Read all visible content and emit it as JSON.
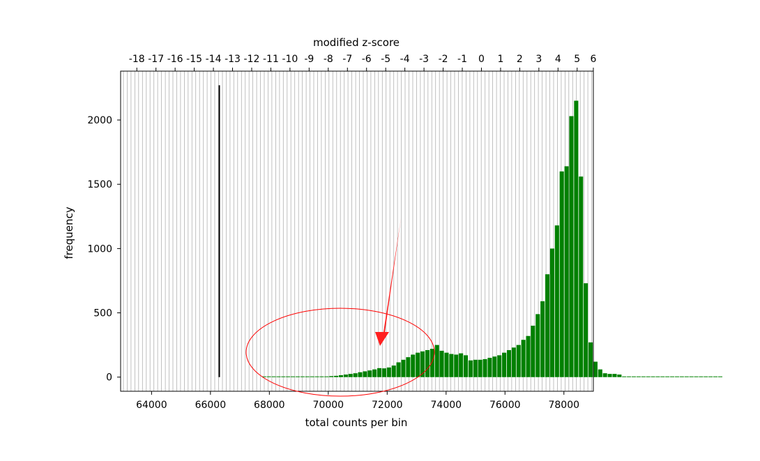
{
  "chart_data": {
    "type": "bar",
    "title": "",
    "xlabel": "total counts per bin",
    "ylabel": "frequency",
    "top_xlabel": "modified z-score",
    "xlim": [
      62950,
      79000
    ],
    "ylim": [
      -110,
      2380
    ],
    "x_ticks": [
      "64000",
      "66000",
      "68000",
      "70000",
      "72000",
      "74000",
      "76000",
      "78000"
    ],
    "y_ticks": [
      "0",
      "500",
      "1000",
      "1500",
      "2000"
    ],
    "top_ticks": [
      {
        "label": "-18",
        "x": 63500
      },
      {
        "label": "-17",
        "x": 64150
      },
      {
        "label": "-16",
        "x": 64800
      },
      {
        "label": "-15",
        "x": 65450
      },
      {
        "label": "-14",
        "x": 66100
      },
      {
        "label": "-13",
        "x": 66750
      },
      {
        "label": "-12",
        "x": 67400
      },
      {
        "label": "-11",
        "x": 68050
      },
      {
        "label": "-10",
        "x": 68700
      },
      {
        "label": "-9",
        "x": 69350
      },
      {
        "label": "-8",
        "x": 70000
      },
      {
        "label": "-7",
        "x": 70650
      },
      {
        "label": "-6",
        "x": 71300
      },
      {
        "label": "-5",
        "x": 71950
      },
      {
        "label": "-4",
        "x": 72600
      },
      {
        "label": "-3",
        "x": 73250
      },
      {
        "label": "-2",
        "x": 73900
      },
      {
        "label": "-1",
        "x": 74550
      },
      {
        "label": "0",
        "x": 75200
      },
      {
        "label": "1",
        "x": 75850
      },
      {
        "label": "2",
        "x": 76500
      },
      {
        "label": "3",
        "x": 77150
      },
      {
        "label": "4",
        "x": 77800
      },
      {
        "label": "5",
        "x": 78450
      },
      {
        "label": "6",
        "x": 79000
      }
    ],
    "bin_width": 163,
    "bin_start": 67750,
    "values": [
      5,
      5,
      5,
      5,
      5,
      5,
      5,
      5,
      5,
      5,
      5,
      5,
      5,
      5,
      8,
      10,
      15,
      20,
      25,
      30,
      38,
      45,
      52,
      60,
      70,
      68,
      75,
      90,
      115,
      135,
      155,
      175,
      190,
      200,
      210,
      220,
      250,
      205,
      190,
      180,
      175,
      185,
      170,
      130,
      135,
      135,
      140,
      150,
      160,
      170,
      190,
      210,
      230,
      250,
      290,
      320,
      400,
      490,
      590,
      800,
      1000,
      1180,
      1600,
      1640,
      2030,
      2150,
      1560,
      730,
      270,
      120,
      60,
      30,
      25,
      25,
      20,
      5,
      5,
      5,
      5,
      5,
      5,
      5,
      5,
      5,
      5,
      5,
      5,
      5,
      5,
      5,
      5,
      5,
      5,
      5,
      5,
      5
    ],
    "threshold_line": {
      "x": 66300,
      "y_top": 2270
    },
    "colors": {
      "bars": "#008000",
      "threshold": "#000000",
      "annotation": "#ff0000",
      "grid": "#b0b0b0"
    }
  }
}
